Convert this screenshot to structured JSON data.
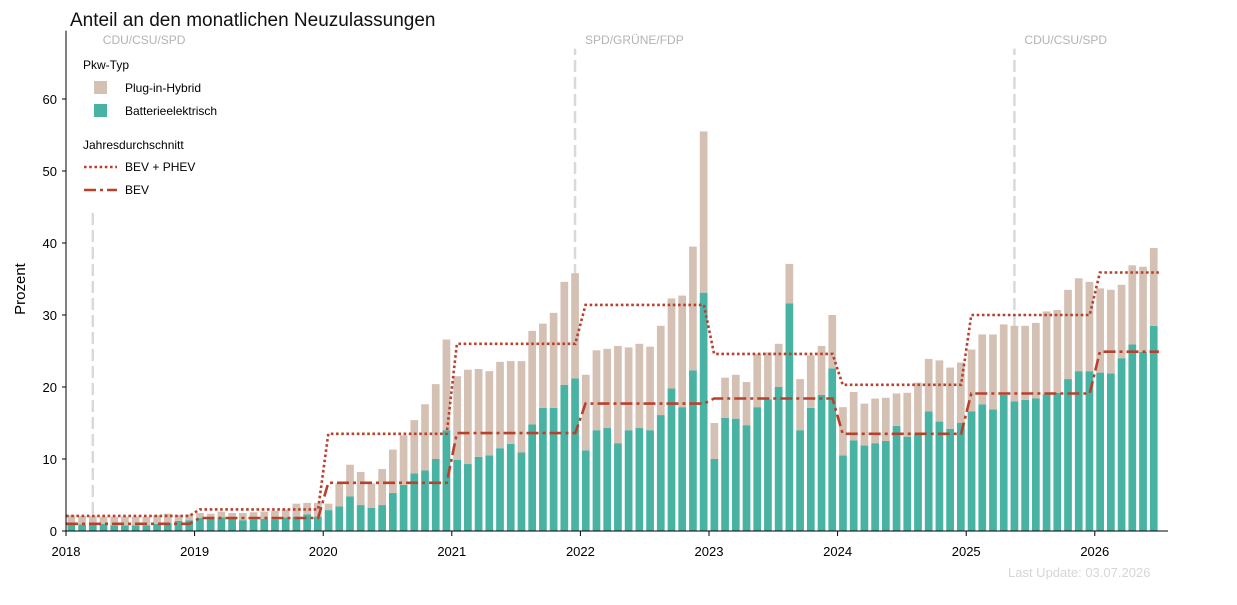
{
  "title": "Anteil an den monatlichen Neuzulassungen",
  "last_update": "Last Update: 03.07.2026",
  "chart_data": {
    "type": "bar",
    "stacked": true,
    "ylabel": "Prozent",
    "ylim": [
      0,
      67
    ],
    "y_ticks": [
      "0",
      "10",
      "20",
      "30",
      "40",
      "50",
      "60"
    ],
    "x_ticks": [
      "2018",
      "2019",
      "2020",
      "2021",
      "2022",
      "2023",
      "2024",
      "2025",
      "2026"
    ],
    "legend": {
      "placement": "top-left",
      "bars_title": "Pkw-Typ",
      "bars_items": [
        "Plug-in-Hybrid",
        "Batterieelektrisch"
      ],
      "lines_title": "Jahresdurchschnitt",
      "lines_items": [
        "BEV + PHEV",
        "BEV"
      ]
    },
    "colors": {
      "phev": "#d5c1b4",
      "bev": "#48b2a3",
      "total_line": "#b8412e",
      "bev_line": "#b8412e",
      "govt_line": "#d9d9d9",
      "govt_text": "#b3b3b3",
      "update_text": "#d6d6d6"
    },
    "government_periods": [
      {
        "label": "CDU/CSU/SPD",
        "date": "2018-03",
        "ymax": 44.8
      },
      {
        "label": "SPD/GRÜNE/FDP",
        "date": "2021-12",
        "ymax": 67
      },
      {
        "label": "CDU/CSU/SPD",
        "date": "2025-05",
        "ymax": 67
      }
    ],
    "months": [
      "2018-01",
      "2018-02",
      "2018-03",
      "2018-04",
      "2018-05",
      "2018-06",
      "2018-07",
      "2018-08",
      "2018-09",
      "2018-10",
      "2018-11",
      "2018-12",
      "2019-01",
      "2019-02",
      "2019-03",
      "2019-04",
      "2019-05",
      "2019-06",
      "2019-07",
      "2019-08",
      "2019-09",
      "2019-10",
      "2019-11",
      "2019-12",
      "2020-01",
      "2020-02",
      "2020-03",
      "2020-04",
      "2020-05",
      "2020-06",
      "2020-07",
      "2020-08",
      "2020-09",
      "2020-10",
      "2020-11",
      "2020-12",
      "2021-01",
      "2021-02",
      "2021-03",
      "2021-04",
      "2021-05",
      "2021-06",
      "2021-07",
      "2021-08",
      "2021-09",
      "2021-10",
      "2021-11",
      "2021-12",
      "2022-01",
      "2022-02",
      "2022-03",
      "2022-04",
      "2022-05",
      "2022-06",
      "2022-07",
      "2022-08",
      "2022-09",
      "2022-10",
      "2022-11",
      "2022-12",
      "2023-01",
      "2023-02",
      "2023-03",
      "2023-04",
      "2023-05",
      "2023-06",
      "2023-07",
      "2023-08",
      "2023-09",
      "2023-10",
      "2023-11",
      "2023-12",
      "2024-01",
      "2024-02",
      "2024-03",
      "2024-04",
      "2024-05",
      "2024-06",
      "2024-07",
      "2024-08",
      "2024-09",
      "2024-10",
      "2024-11",
      "2024-12",
      "2025-01",
      "2025-02",
      "2025-03",
      "2025-04",
      "2025-05",
      "2025-06",
      "2025-07",
      "2025-08",
      "2025-09",
      "2025-10",
      "2025-11",
      "2025-12",
      "2026-01",
      "2026-02",
      "2026-03",
      "2026-04",
      "2026-05",
      "2026-06"
    ],
    "series": [
      {
        "name": "Batterieelektrisch",
        "values": [
          0.9,
          0.9,
          0.9,
          1.0,
          0.8,
          0.8,
          0.8,
          0.8,
          1.0,
          1.1,
          1.4,
          1.5,
          1.8,
          1.8,
          1.9,
          1.7,
          1.5,
          1.6,
          1.7,
          1.6,
          1.9,
          2.0,
          2.3,
          2.0,
          2.9,
          3.4,
          4.8,
          3.6,
          3.2,
          3.6,
          5.3,
          6.4,
          8.0,
          8.4,
          10.0,
          14.0,
          9.9,
          9.3,
          10.3,
          10.5,
          11.5,
          12.1,
          10.9,
          14.8,
          17.1,
          17.1,
          20.3,
          21.2,
          11.2,
          14.0,
          14.3,
          12.2,
          14.0,
          14.3,
          14.0,
          16.1,
          19.8,
          17.2,
          22.3,
          33.1,
          10.0,
          15.7,
          15.6,
          14.7,
          17.2,
          18.3,
          20.0,
          31.6,
          14.0,
          17.1,
          18.9,
          22.6,
          10.5,
          12.6,
          11.9,
          12.2,
          12.5,
          14.6,
          13.1,
          13.4,
          16.6,
          15.2,
          14.2,
          15.0,
          16.6,
          17.6,
          16.9,
          18.9,
          18.0,
          18.2,
          18.4,
          19.0,
          19.2,
          21.1,
          22.2,
          22.2,
          22.0,
          21.9,
          24.0,
          25.9,
          24.9,
          28.5
        ]
      },
      {
        "name": "Plug-in-Hybrid",
        "values": [
          1.3,
          1.2,
          1.2,
          1.0,
          1.2,
          1.2,
          1.2,
          1.2,
          1.2,
          1.3,
          0.8,
          0.8,
          0.7,
          0.6,
          0.8,
          0.8,
          1.0,
          1.0,
          1.0,
          1.2,
          1.1,
          1.8,
          1.6,
          1.9,
          0.9,
          3.2,
          4.4,
          4.6,
          3.4,
          5.0,
          6.0,
          6.9,
          7.4,
          9.2,
          10.4,
          12.6,
          11.6,
          13.1,
          12.2,
          11.7,
          12.0,
          11.5,
          12.7,
          13.0,
          11.7,
          13.2,
          14.3,
          14.6,
          10.5,
          11.1,
          11.0,
          13.5,
          11.5,
          11.7,
          11.6,
          12.4,
          12.5,
          15.5,
          17.2,
          22.4,
          5.0,
          5.6,
          6.1,
          6.0,
          7.4,
          6.5,
          6.0,
          5.5,
          7.1,
          7.3,
          6.8,
          7.4,
          6.7,
          6.7,
          5.8,
          6.2,
          6.0,
          4.5,
          6.1,
          7.2,
          7.3,
          8.5,
          8.5,
          8.4,
          8.6,
          9.7,
          10.4,
          9.8,
          10.5,
          10.3,
          10.5,
          11.5,
          11.5,
          12.4,
          12.9,
          12.4,
          11.7,
          11.6,
          10.2,
          11.0,
          11.8,
          10.8
        ]
      }
    ],
    "annual_average": [
      {
        "year": "2018",
        "bev_phev": 2.1,
        "bev": 1.0
      },
      {
        "year": "2019",
        "bev_phev": 3.0,
        "bev": 1.8
      },
      {
        "year": "2020",
        "bev_phev": 13.5,
        "bev": 6.7
      },
      {
        "year": "2021",
        "bev_phev": 26.0,
        "bev": 13.6
      },
      {
        "year": "2022",
        "bev_phev": 31.4,
        "bev": 17.7
      },
      {
        "year": "2023",
        "bev_phev": 24.6,
        "bev": 18.4
      },
      {
        "year": "2024",
        "bev_phev": 20.3,
        "bev": 13.5
      },
      {
        "year": "2025",
        "bev_phev": 30.0,
        "bev": 19.1
      },
      {
        "year": "2026",
        "bev_phev": 35.9,
        "bev": 24.9
      }
    ]
  }
}
